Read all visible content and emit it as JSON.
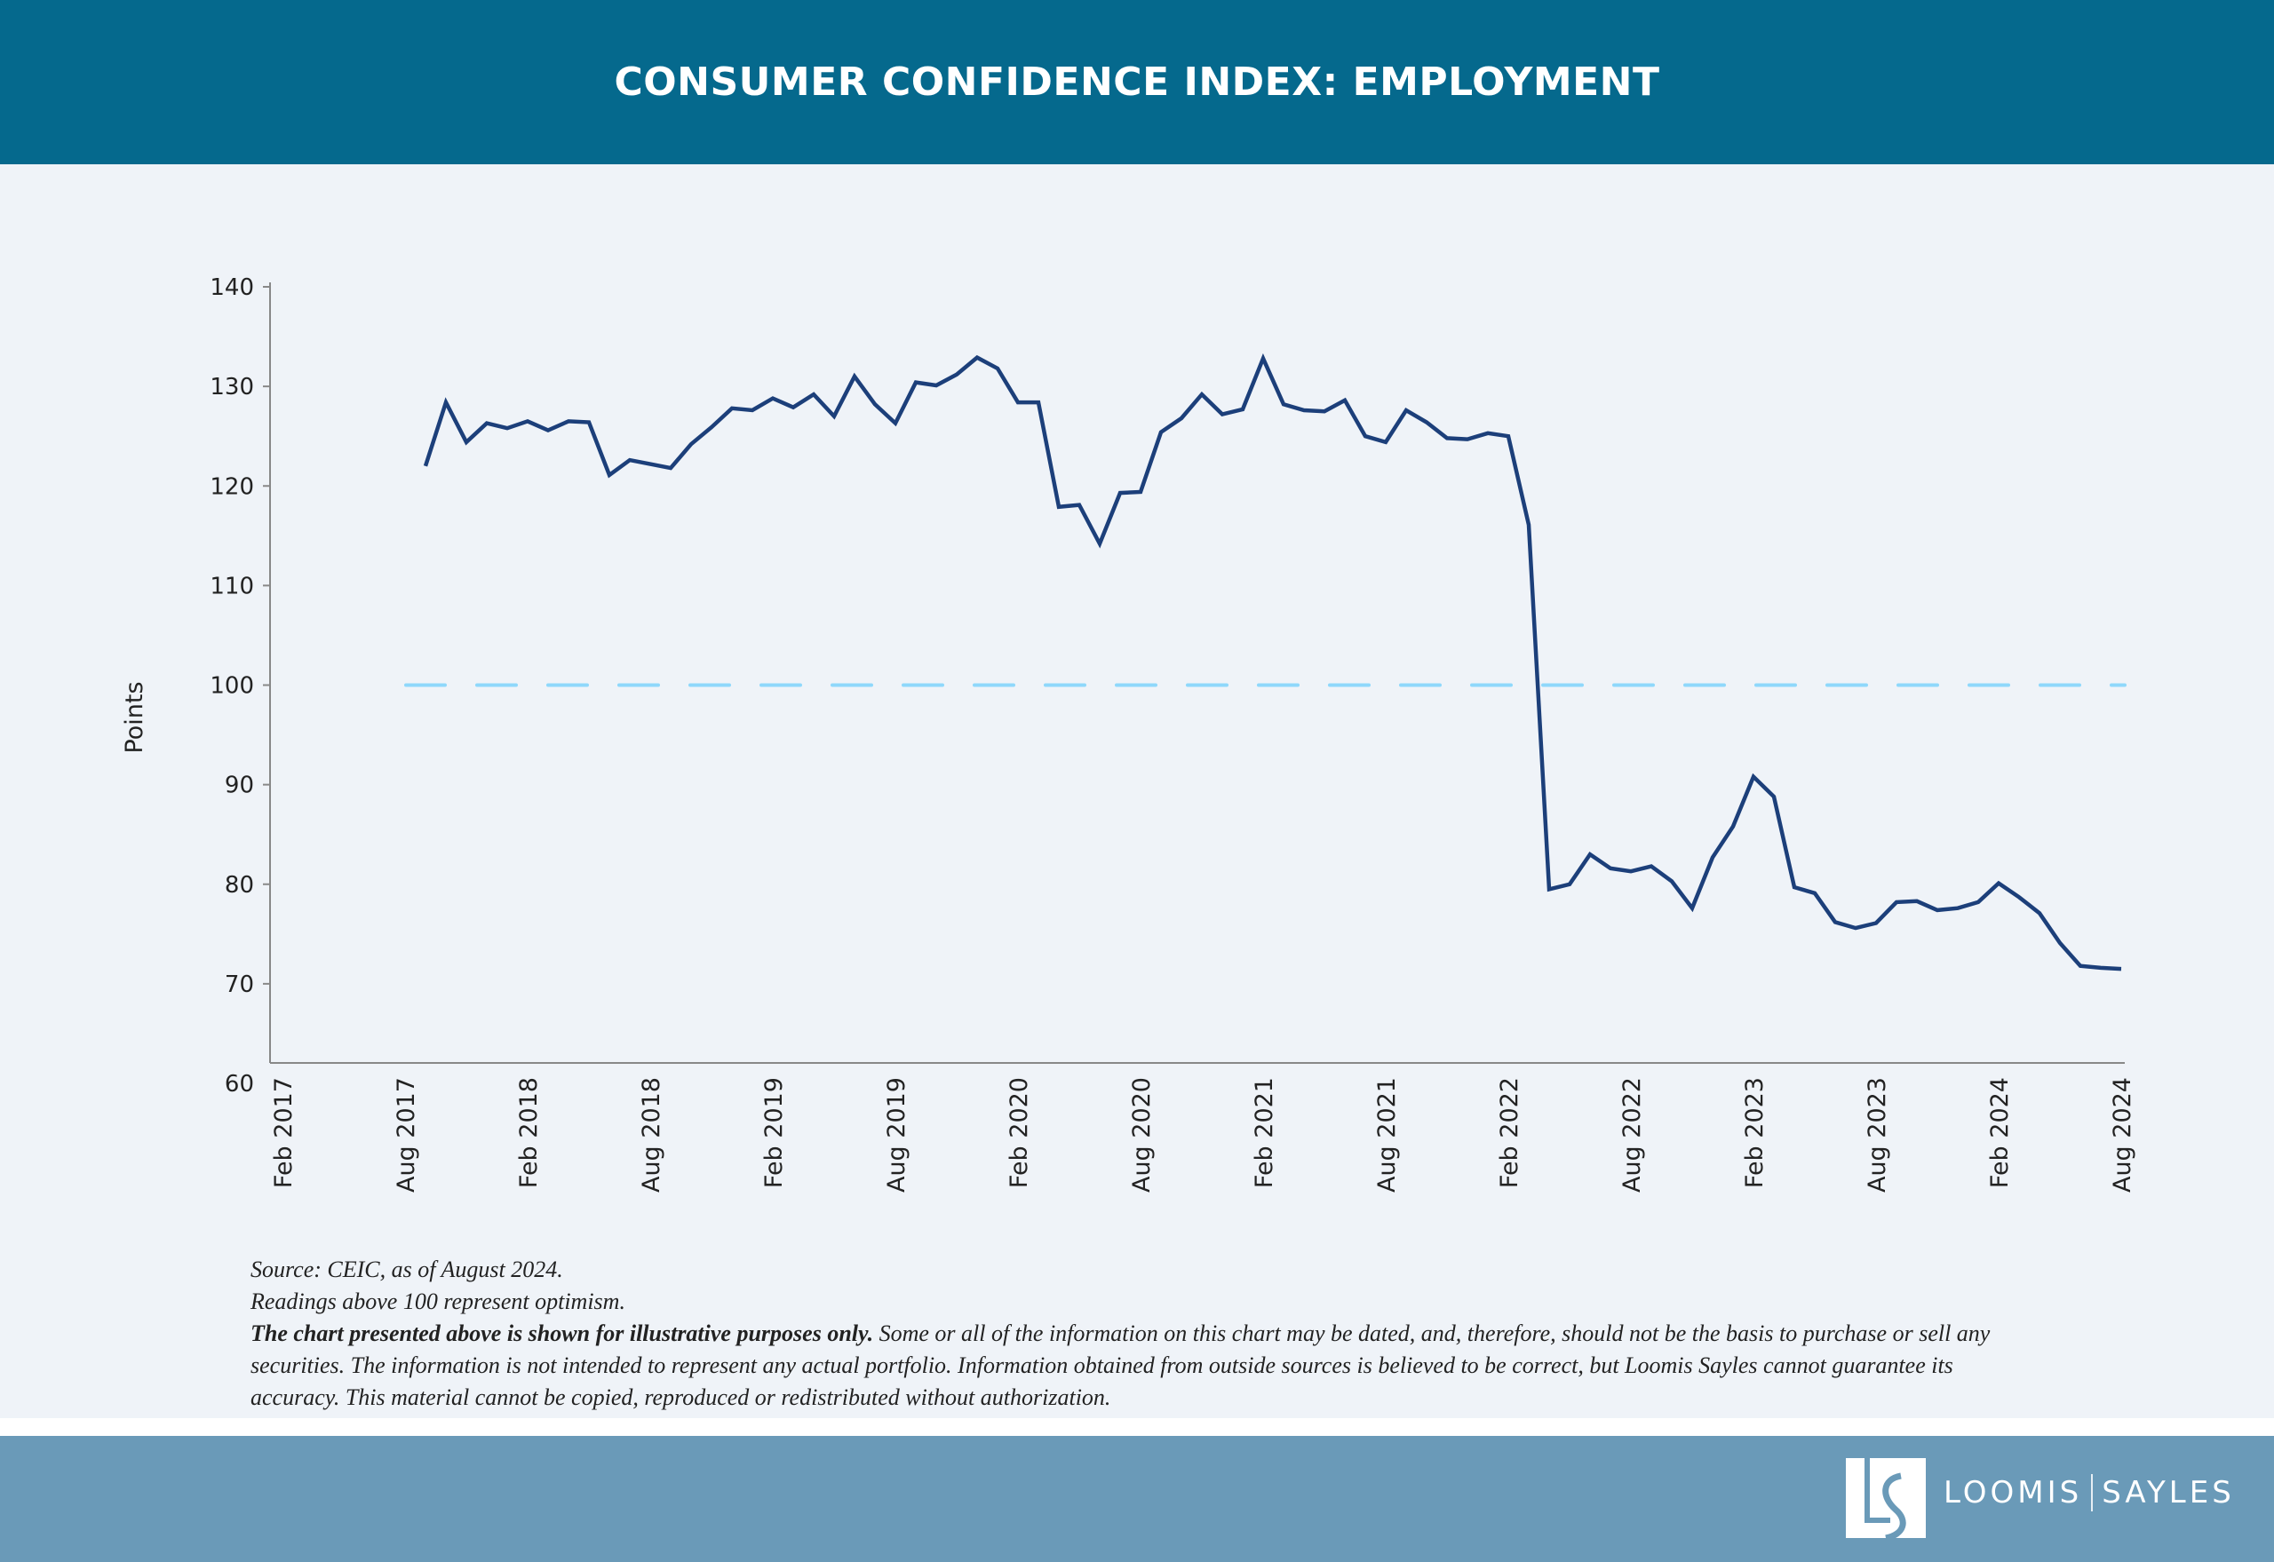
{
  "header": {
    "title": "CONSUMER CONFIDENCE INDEX: EMPLOYMENT"
  },
  "chart_data": {
    "type": "line",
    "title": "CONSUMER CONFIDENCE INDEX: EMPLOYMENT",
    "xlabel": "",
    "ylabel": "Points",
    "ylim": [
      60,
      140
    ],
    "yticks": [
      60,
      70,
      80,
      90,
      100,
      110,
      120,
      130,
      140
    ],
    "xticks": [
      "Feb 2017",
      "Aug 2017",
      "Feb 2018",
      "Aug 2018",
      "Feb 2019",
      "Aug 2019",
      "Feb 2020",
      "Aug 2020",
      "Feb 2021",
      "Aug 2021",
      "Feb 2022",
      "Aug 2022",
      "Feb 2023",
      "Aug 2023",
      "Feb 2024",
      "Aug 2024"
    ],
    "xlim": [
      "2017-02",
      "2024-08"
    ],
    "x_start": "2017-09",
    "frequency": "monthly",
    "reference_line": {
      "y": 100,
      "style": "dashed",
      "color": "#8fd8fb"
    },
    "grid": false,
    "series": [
      {
        "color": "#1c3f7a",
        "values": [
          122.0,
          128.4,
          124.4,
          126.3,
          125.8,
          126.5,
          125.6,
          126.5,
          126.4,
          121.1,
          122.6,
          122.2,
          121.8,
          124.2,
          125.9,
          127.8,
          127.6,
          128.8,
          127.9,
          129.2,
          127.0,
          131.0,
          128.2,
          126.3,
          130.4,
          130.1,
          131.2,
          132.9,
          131.8,
          128.4,
          128.4,
          117.9,
          118.1,
          114.2,
          119.3,
          119.4,
          125.4,
          126.8,
          129.2,
          127.2,
          127.7,
          132.8,
          128.2,
          127.6,
          127.5,
          128.6,
          125.0,
          124.4,
          127.6,
          126.4,
          124.8,
          124.7,
          125.3,
          125.0,
          116.1,
          79.5,
          80.0,
          83.0,
          81.6,
          81.3,
          81.8,
          80.3,
          77.6,
          82.7,
          85.8,
          90.8,
          88.8,
          79.7,
          79.1,
          76.2,
          75.6,
          76.1,
          78.2,
          78.3,
          77.4,
          77.6,
          78.2,
          80.1,
          78.7,
          77.1,
          74.1,
          71.8,
          71.6,
          71.5
        ]
      }
    ]
  },
  "footnote": {
    "source": "Source: CEIC, as of August 2024.",
    "note": "Readings above 100 represent optimism.",
    "disclaimer_bold": "The chart presented above is shown for illustrative purposes only.",
    "disclaimer": " Some or all of the information on this chart may be dated, and, therefore, should not be the basis to purchase or sell any securities. The information is not intended to represent any actual portfolio. Information obtained from outside sources is believed to be correct, but Loomis Sayles cannot guarantee its accuracy. This material cannot be copied, reproduced or redistributed without authorization."
  },
  "footer": {
    "logo_letters": "LS",
    "brand_left": "LOOMIS",
    "brand_right": "SAYLES"
  },
  "colors": {
    "header": "#05698d",
    "footer": "#6a9ab8",
    "background": "#eff3f8",
    "line": "#1c3f7a",
    "reference": "#8fd8fb"
  }
}
